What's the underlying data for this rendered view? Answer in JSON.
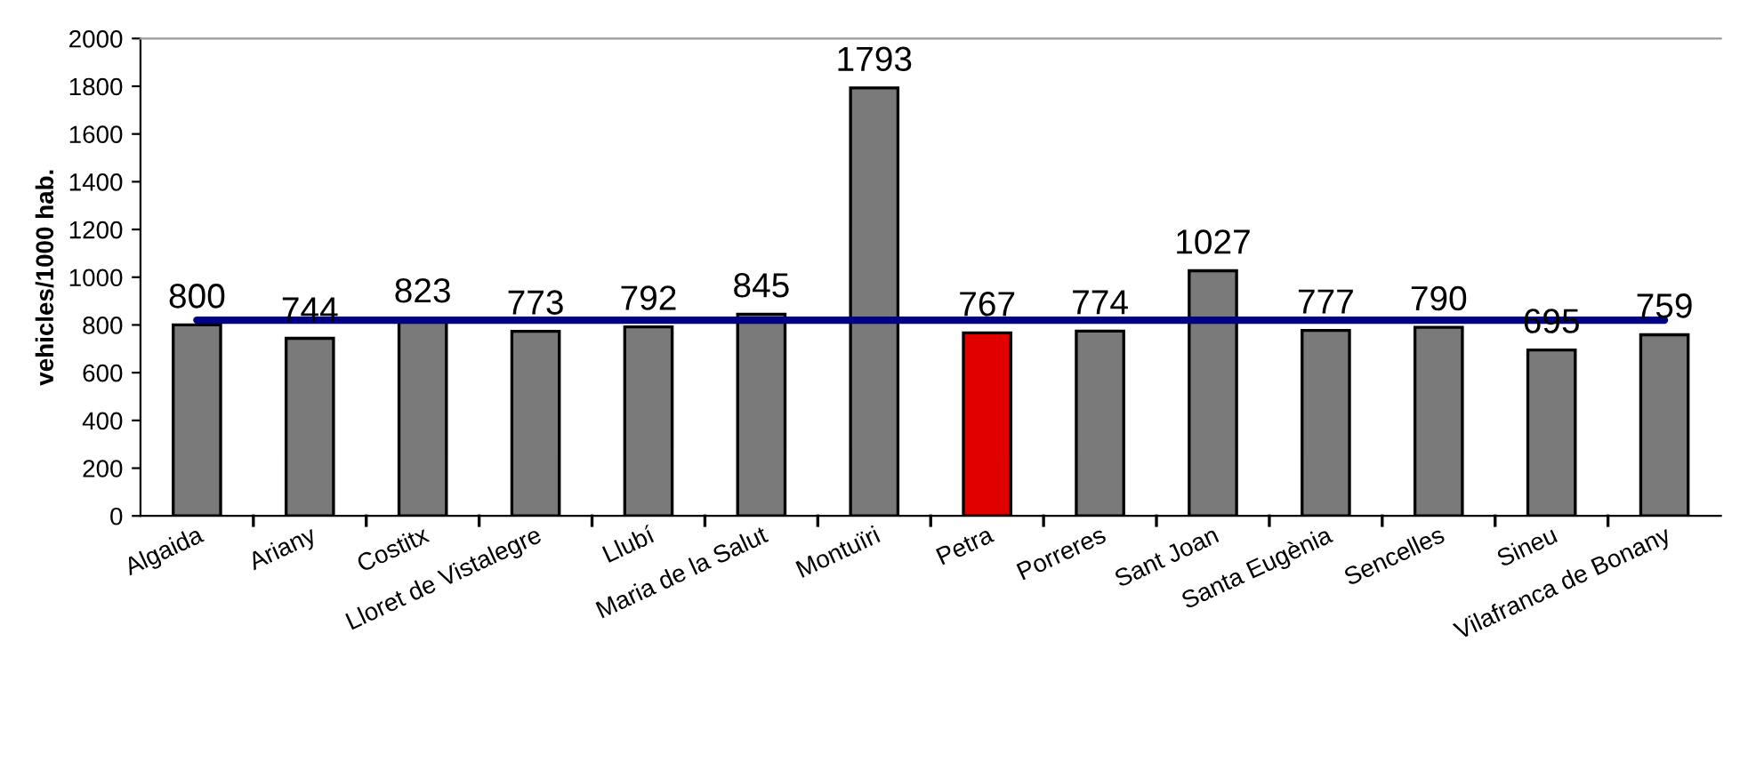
{
  "chart_data": {
    "type": "bar",
    "ylabel": "vehicles/1000 hab.",
    "categories": [
      "Algaida",
      "Ariany",
      "Costitx",
      "Lloret de Vistalegre",
      "Llubí",
      "Maria de la Salut",
      "Montuïri",
      "Petra",
      "Porreres",
      "Sant Joan",
      "Santa Eugènia",
      "Sencelles",
      "Sineu",
      "Vilafranca de Bonany"
    ],
    "values": [
      800,
      744,
      823,
      773,
      792,
      845,
      1793,
      767,
      774,
      1027,
      777,
      790,
      695,
      759
    ],
    "colors": [
      "#7a7a7a",
      "#7a7a7a",
      "#7a7a7a",
      "#7a7a7a",
      "#7a7a7a",
      "#7a7a7a",
      "#7a7a7a",
      "#e00000",
      "#7a7a7a",
      "#7a7a7a",
      "#7a7a7a",
      "#7a7a7a",
      "#7a7a7a",
      "#7a7a7a"
    ],
    "data_labels": true,
    "ylim": [
      0,
      2000
    ],
    "yticks": [
      0,
      200,
      400,
      600,
      800,
      1000,
      1200,
      1400,
      1600,
      1800,
      2000
    ],
    "ref_lines": [
      {
        "axis": "y",
        "value": 820,
        "color": "#000080",
        "line_style": "solid"
      }
    ],
    "grid": false,
    "legend": false
  }
}
